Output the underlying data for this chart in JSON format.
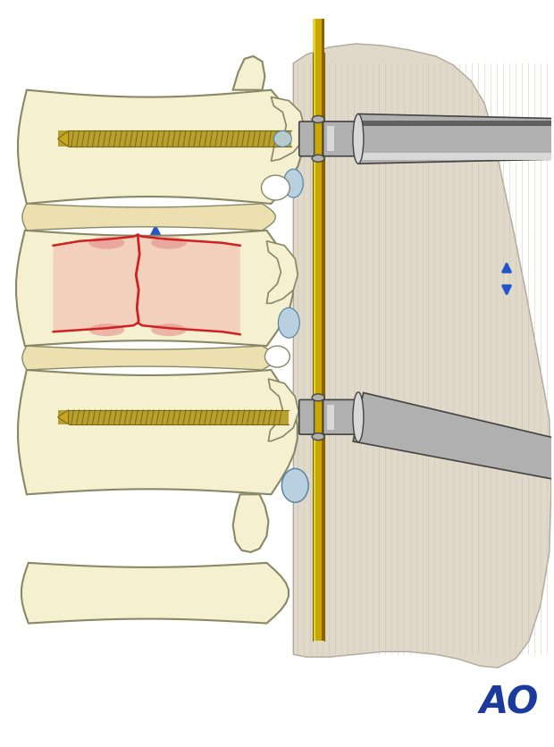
{
  "bg_color": "#ffffff",
  "bone_fill": "#f5f0d0",
  "bone_fill2": "#ede8c0",
  "bone_edge": "#888866",
  "disc_fill": "#ede0b0",
  "fracture_red": "#cc2222",
  "fracture_pink": "#e88080",
  "screw_gold": "#b8a030",
  "screw_dark": "#7a6810",
  "rod_gold_light": "#e8d040",
  "rod_gold_mid": "#c8a800",
  "rod_gold_dark": "#906000",
  "connector_light": "#d8d8d8",
  "connector_mid": "#b0b0b0",
  "connector_dark": "#606060",
  "connector_edge": "#444444",
  "skin_fill": "#e0d8c8",
  "skin_line": "#c8c0b0",
  "nerve_blue": "#b8d0e0",
  "nerve_edge": "#5080a0",
  "arrow_blue": "#2255cc",
  "ao_blue": "#1a3a9c",
  "spine_outer": "#aaaaaa",
  "spine_fill": "#f8f4e8"
}
